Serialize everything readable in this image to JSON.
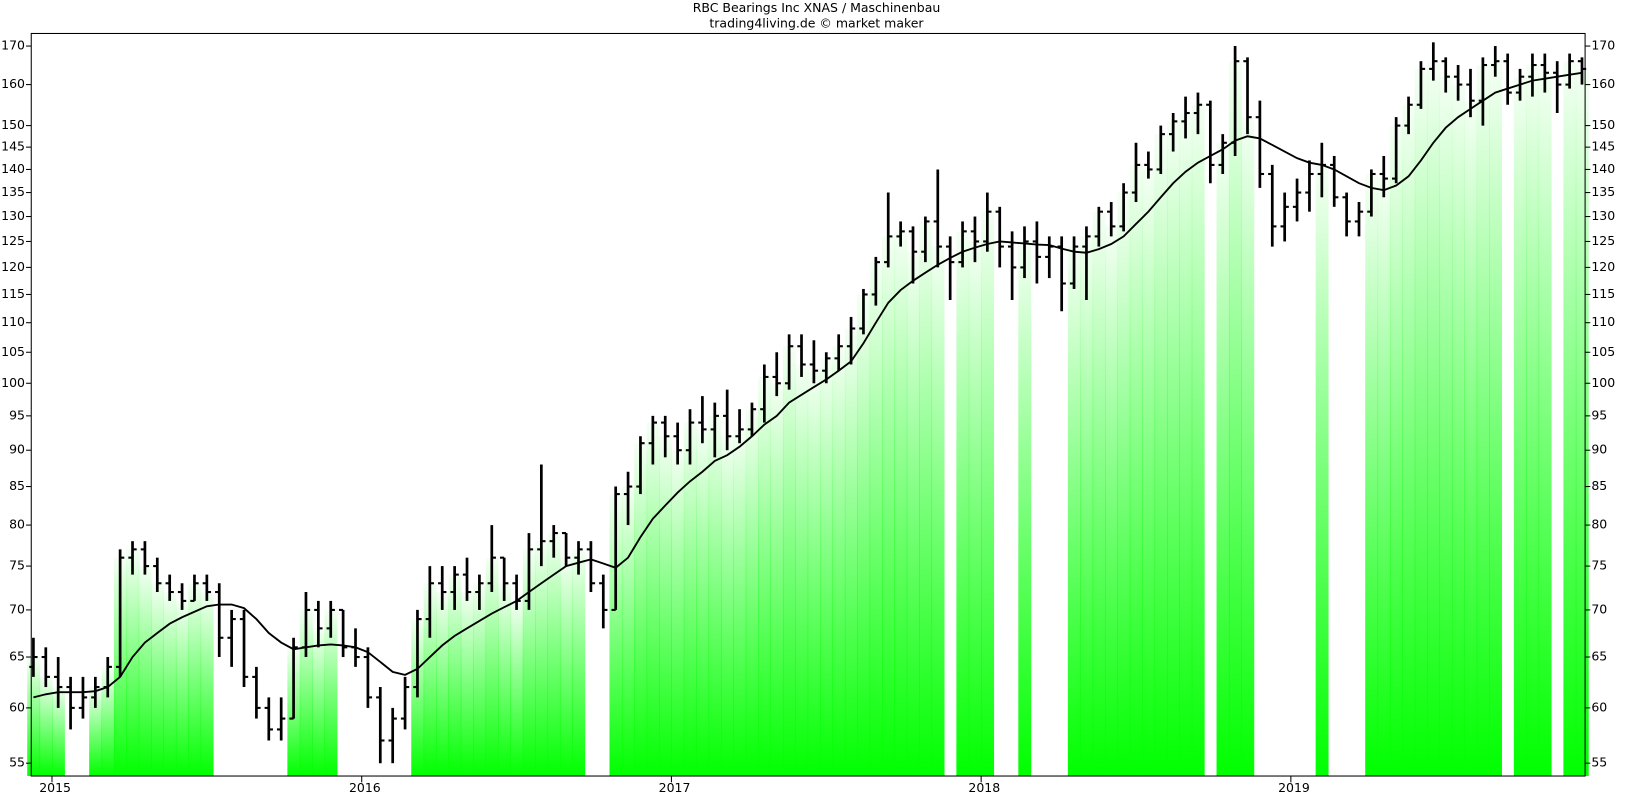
{
  "chart_data": {
    "type": "ohlc",
    "title": "RBC Bearings Inc XNAS / Maschinenbau",
    "subtitle": "trading4living.de © market maker",
    "log_scale": true,
    "bar_color": "#000000",
    "line_color": "#000000",
    "fill_color": "#00ff00",
    "xlim": [
      2014.933,
      2019.95
    ],
    "xticks": [
      2015,
      2016,
      2017,
      2018,
      2019
    ],
    "ylim": [
      53.9,
      173.4
    ],
    "yticks": [
      55,
      60,
      65,
      70,
      75,
      80,
      85,
      90,
      95,
      100,
      105,
      110,
      115,
      120,
      125,
      130,
      135,
      140,
      145,
      150,
      160,
      170
    ],
    "x": [
      2014.94,
      2014.98,
      2015.02,
      2015.06,
      2015.1,
      2015.14,
      2015.18,
      2015.22,
      2015.26,
      2015.3,
      2015.34,
      2015.38,
      2015.42,
      2015.46,
      2015.5,
      2015.54,
      2015.58,
      2015.62,
      2015.66,
      2015.7,
      2015.74,
      2015.78,
      2015.82,
      2015.86,
      2015.9,
      2015.94,
      2015.98,
      2016.02,
      2016.06,
      2016.1,
      2016.14,
      2016.18,
      2016.22,
      2016.26,
      2016.3,
      2016.34,
      2016.38,
      2016.42,
      2016.46,
      2016.5,
      2016.54,
      2016.58,
      2016.62,
      2016.66,
      2016.7,
      2016.74,
      2016.78,
      2016.82,
      2016.86,
      2016.9,
      2016.94,
      2016.98,
      2017.02,
      2017.06,
      2017.1,
      2017.14,
      2017.18,
      2017.22,
      2017.26,
      2017.3,
      2017.34,
      2017.38,
      2017.42,
      2017.46,
      2017.5,
      2017.54,
      2017.58,
      2017.62,
      2017.66,
      2017.7,
      2017.74,
      2017.78,
      2017.82,
      2017.86,
      2017.9,
      2017.94,
      2017.98,
      2018.02,
      2018.06,
      2018.1,
      2018.14,
      2018.18,
      2018.22,
      2018.26,
      2018.3,
      2018.34,
      2018.38,
      2018.42,
      2018.46,
      2018.5,
      2018.54,
      2018.58,
      2018.62,
      2018.66,
      2018.7,
      2018.74,
      2018.78,
      2018.82,
      2018.86,
      2018.9,
      2018.94,
      2018.98,
      2019.02,
      2019.06,
      2019.1,
      2019.14,
      2019.18,
      2019.22,
      2019.26,
      2019.3,
      2019.34,
      2019.38,
      2019.42,
      2019.46,
      2019.5,
      2019.54,
      2019.58,
      2019.62,
      2019.66,
      2019.7,
      2019.74,
      2019.78,
      2019.82,
      2019.86,
      2019.9,
      2019.94
    ],
    "open": [
      64,
      65,
      63,
      62,
      60,
      61,
      62,
      64,
      76,
      77,
      75,
      73,
      72,
      71,
      73,
      72,
      67,
      69,
      63,
      60,
      58,
      59,
      66,
      70,
      68,
      70,
      66,
      65,
      61,
      57,
      59,
      62,
      69,
      73,
      72,
      74,
      72,
      73,
      76,
      73,
      71,
      77,
      78,
      79,
      76,
      77,
      73,
      70,
      84,
      85,
      91,
      94,
      92,
      90,
      94,
      93,
      95,
      92,
      93,
      96,
      101,
      100,
      106,
      103,
      102,
      104,
      106,
      109,
      115,
      121,
      126,
      127,
      123,
      129,
      124,
      121,
      127,
      125,
      131,
      124,
      120,
      125,
      122,
      124,
      117,
      124,
      126,
      131,
      128,
      135,
      141,
      140,
      148,
      151,
      153,
      155,
      141,
      146,
      166,
      152,
      139,
      128,
      132,
      135,
      139,
      141,
      134,
      129,
      131,
      139,
      138,
      150,
      155,
      164,
      166,
      162,
      160,
      156,
      165,
      166,
      158,
      162,
      165,
      163,
      160,
      166
    ],
    "high": [
      67,
      66,
      65,
      63,
      63,
      63,
      65,
      77,
      78,
      78,
      76,
      74,
      73,
      74,
      74,
      73,
      70,
      70,
      64,
      61,
      61,
      67,
      72,
      71,
      71,
      70,
      68,
      66,
      62,
      60,
      63,
      70,
      75,
      75,
      75,
      76,
      74,
      80,
      76,
      74,
      79,
      88,
      80,
      79,
      78,
      78,
      74,
      85,
      87,
      92,
      95,
      95,
      94,
      96,
      98,
      97,
      99,
      96,
      97,
      103,
      105,
      108,
      108,
      107,
      105,
      108,
      111,
      116,
      122,
      135,
      129,
      128,
      130,
      140,
      126,
      129,
      130,
      135,
      132,
      127,
      128,
      129,
      126,
      126,
      126,
      128,
      132,
      133,
      137,
      146,
      144,
      150,
      153,
      157,
      158,
      156,
      148,
      170,
      167,
      156,
      141,
      135,
      138,
      142,
      146,
      143,
      135,
      133,
      140,
      143,
      152,
      157,
      166,
      171,
      167,
      165,
      164,
      167,
      170,
      168,
      164,
      168,
      168,
      166,
      168,
      167
    ],
    "low": [
      63,
      62,
      60,
      58,
      59,
      60,
      61,
      63,
      74,
      74,
      72,
      71,
      70,
      71,
      71,
      65,
      64,
      62,
      59,
      57,
      57,
      59,
      65,
      66,
      67,
      65,
      64,
      60,
      55,
      55,
      58,
      61,
      67,
      70,
      70,
      71,
      70,
      72,
      71,
      70,
      70,
      75,
      76,
      75,
      74,
      72,
      68,
      70,
      80,
      84,
      88,
      89,
      88,
      88,
      91,
      89,
      90,
      91,
      92,
      94,
      98,
      99,
      101,
      100,
      100,
      102,
      103,
      108,
      113,
      120,
      124,
      117,
      121,
      120,
      114,
      120,
      121,
      123,
      120,
      114,
      118,
      117,
      118,
      112,
      116,
      114,
      124,
      126,
      127,
      133,
      138,
      139,
      144,
      147,
      148,
      137,
      139,
      143,
      148,
      136,
      124,
      125,
      129,
      131,
      134,
      132,
      126,
      126,
      130,
      134,
      137,
      148,
      154,
      161,
      158,
      156,
      152,
      150,
      162,
      155,
      156,
      157,
      158,
      153,
      159,
      160
    ],
    "close": [
      65,
      63,
      62,
      60,
      61,
      62,
      64,
      76,
      77,
      75,
      73,
      72,
      71,
      73,
      72,
      67,
      69,
      63,
      60,
      58,
      59,
      66,
      70,
      68,
      70,
      66,
      65,
      61,
      57,
      59,
      62,
      69,
      73,
      72,
      74,
      72,
      73,
      76,
      73,
      71,
      77,
      78,
      79,
      76,
      77,
      73,
      70,
      84,
      85,
      91,
      94,
      92,
      90,
      94,
      93,
      95,
      92,
      93,
      96,
      101,
      100,
      106,
      103,
      102,
      104,
      106,
      109,
      115,
      121,
      126,
      127,
      123,
      129,
      124,
      121,
      127,
      125,
      131,
      124,
      120,
      125,
      122,
      124,
      117,
      124,
      126,
      131,
      128,
      135,
      141,
      140,
      148,
      151,
      153,
      155,
      141,
      146,
      166,
      152,
      139,
      128,
      132,
      135,
      139,
      141,
      134,
      129,
      131,
      139,
      138,
      150,
      155,
      164,
      166,
      162,
      160,
      156,
      165,
      166,
      158,
      162,
      165,
      163,
      160,
      166,
      164
    ],
    "ma": [
      61,
      61.3,
      61.5,
      61.5,
      61.5,
      61.6,
      62,
      63,
      65,
      66.5,
      67.5,
      68.5,
      69.2,
      69.8,
      70.4,
      70.6,
      70.6,
      70.2,
      69,
      67.5,
      66.5,
      65.8,
      66,
      66.2,
      66.3,
      66.2,
      66,
      65.5,
      64.5,
      63.5,
      63.2,
      63.8,
      65,
      66.2,
      67.2,
      68,
      68.8,
      69.6,
      70.3,
      71,
      72,
      73,
      74,
      75,
      75.4,
      75.8,
      75.3,
      74.8,
      76,
      78.5,
      80.8,
      82.5,
      84.2,
      85.7,
      87,
      88.5,
      89.3,
      90.5,
      92,
      93.7,
      95,
      97,
      98.2,
      99.4,
      100.6,
      102,
      103.5,
      106.5,
      110,
      113.5,
      115.8,
      117.5,
      119,
      120.5,
      121.8,
      123,
      123.8,
      124.5,
      125,
      124.8,
      124.6,
      124.4,
      124.3,
      123.6,
      123,
      122.8,
      123.5,
      124.5,
      126,
      128.5,
      131,
      134,
      137,
      139.5,
      141.5,
      143,
      144.5,
      146.5,
      147.5,
      147,
      145.5,
      144,
      142.5,
      141.5,
      141,
      140,
      138.5,
      137,
      136,
      135.5,
      136.5,
      138.5,
      142,
      146,
      149.5,
      152,
      154,
      156,
      158,
      159,
      160,
      161,
      161.5,
      162,
      162.5,
      163
    ]
  }
}
